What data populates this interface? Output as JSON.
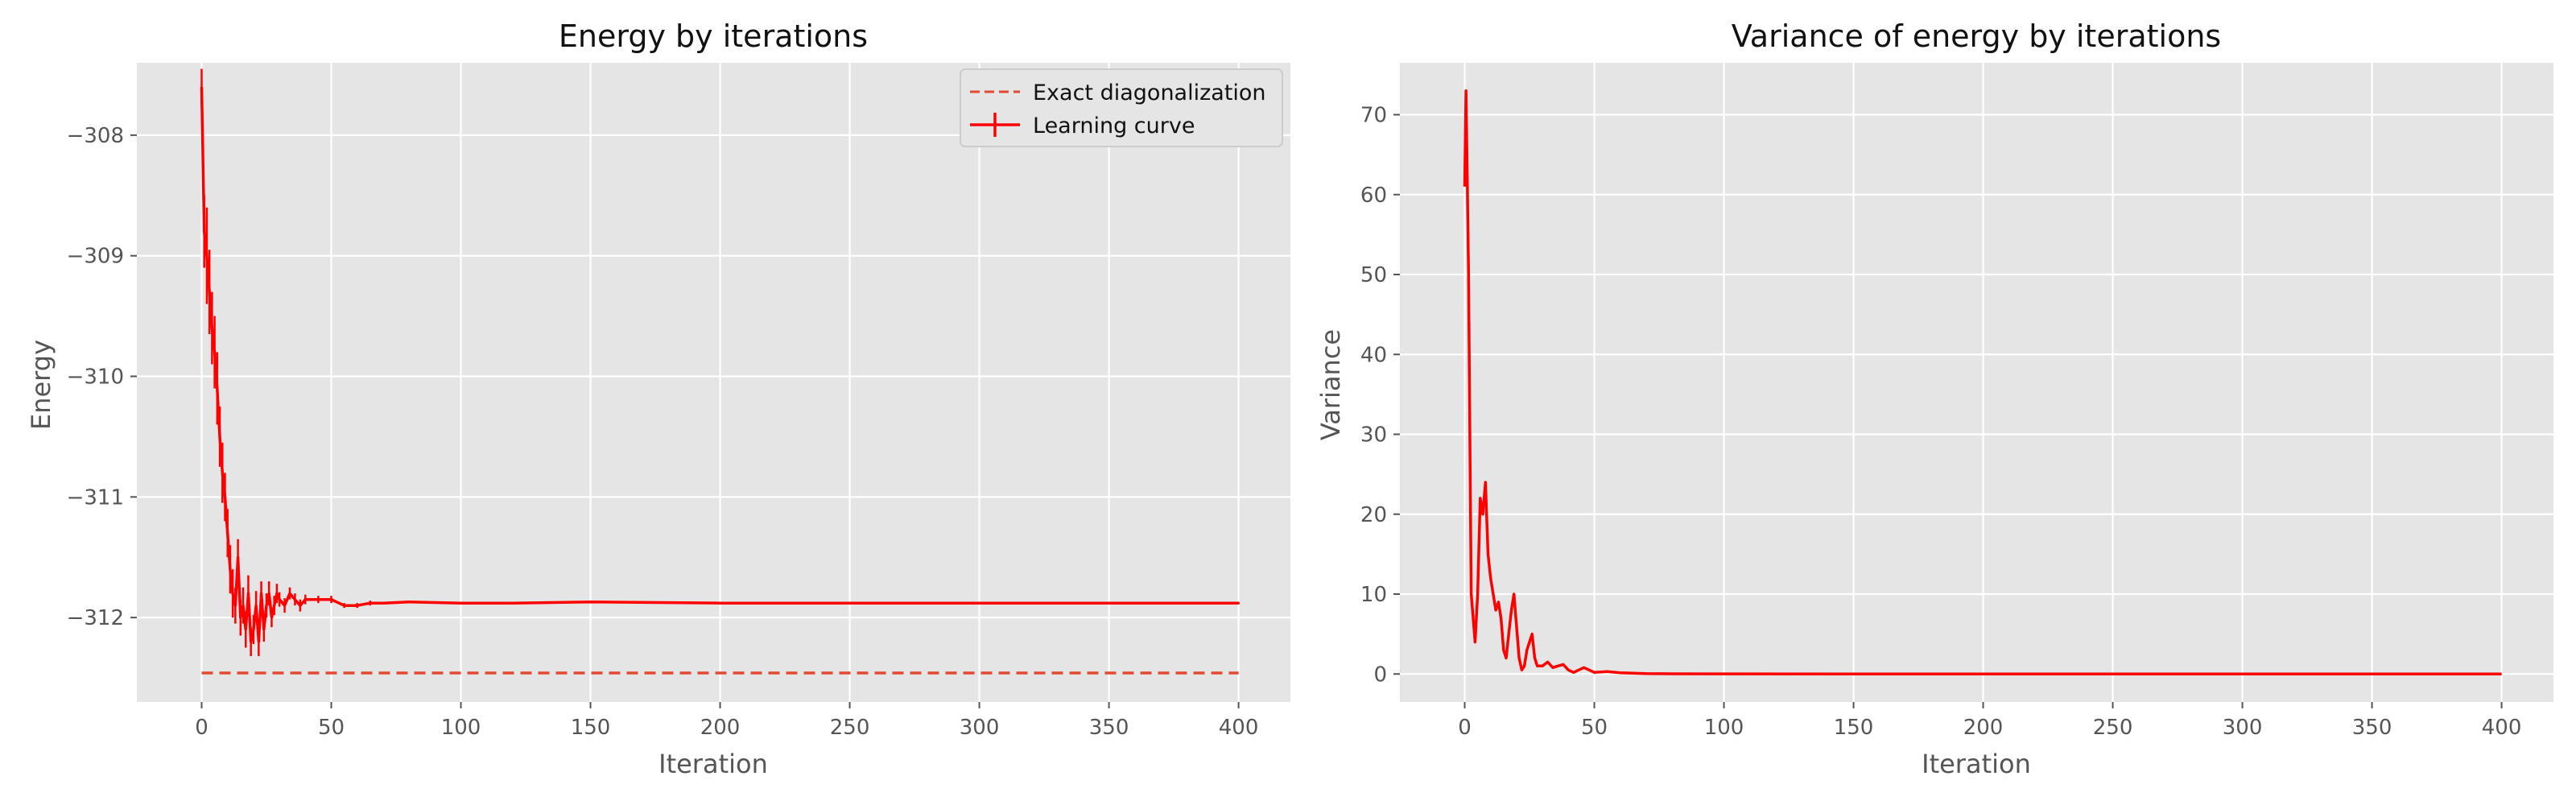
{
  "colors": {
    "background": "#E5E5E5",
    "grid": "#FFFFFF",
    "curve": "#FF0000",
    "reference": "#E24A33",
    "text": "#555555"
  },
  "chart_data": [
    {
      "type": "line",
      "title": "Energy by iterations",
      "xlabel": "Iteration",
      "ylabel": "Energy",
      "xlim": [
        -25,
        420
      ],
      "ylim": [
        -312.7,
        -307.4
      ],
      "xticks": [
        0,
        50,
        100,
        150,
        200,
        250,
        300,
        350,
        400
      ],
      "yticks": [
        -312,
        -311,
        -310,
        -309,
        -308
      ],
      "grid": true,
      "legend_position": "top-right",
      "series": [
        {
          "name": "Exact diagonalization",
          "style": "dashed",
          "x": [
            0,
            400
          ],
          "y": [
            -312.46,
            -312.46
          ]
        },
        {
          "name": "Learning curve",
          "style": "solid-errorbars",
          "x": [
            0,
            1,
            2,
            3,
            4,
            5,
            6,
            7,
            8,
            9,
            10,
            11,
            12,
            13,
            14,
            15,
            16,
            17,
            18,
            19,
            20,
            21,
            22,
            23,
            24,
            25,
            26,
            27,
            28,
            29,
            30,
            32,
            34,
            36,
            38,
            40,
            45,
            50,
            55,
            60,
            65,
            70,
            80,
            100,
            120,
            150,
            200,
            250,
            300,
            350,
            400
          ],
          "y": [
            -307.6,
            -308.8,
            -309.0,
            -309.3,
            -309.6,
            -309.8,
            -310.1,
            -310.5,
            -310.8,
            -311.0,
            -311.3,
            -311.6,
            -311.8,
            -311.9,
            -311.5,
            -312.0,
            -311.9,
            -312.1,
            -311.8,
            -312.2,
            -312.1,
            -311.9,
            -312.2,
            -311.8,
            -312.1,
            -311.9,
            -311.8,
            -312.0,
            -311.9,
            -311.8,
            -311.85,
            -311.9,
            -311.8,
            -311.85,
            -311.9,
            -311.85,
            -311.85,
            -311.85,
            -311.9,
            -311.9,
            -311.88,
            -311.88,
            -311.87,
            -311.88,
            -311.88,
            -311.87,
            -311.88,
            -311.88,
            -311.88,
            -311.88,
            -311.88
          ],
          "yerr": [
            0.15,
            0.3,
            0.4,
            0.35,
            0.3,
            0.3,
            0.3,
            0.25,
            0.25,
            0.2,
            0.2,
            0.2,
            0.2,
            0.15,
            0.15,
            0.15,
            0.15,
            0.15,
            0.15,
            0.12,
            0.12,
            0.12,
            0.12,
            0.1,
            0.1,
            0.1,
            0.1,
            0.08,
            0.08,
            0.08,
            0.06,
            0.06,
            0.05,
            0.05,
            0.05,
            0.04,
            0.03,
            0.03,
            0.02,
            0.02,
            0.02,
            0.01,
            0.01,
            0.01,
            0.01,
            0.01,
            0.01,
            0.01,
            0.01,
            0.01,
            0.01
          ]
        }
      ]
    },
    {
      "type": "line",
      "title": "Variance of energy by iterations",
      "xlabel": "Iteration",
      "ylabel": "Variance",
      "xlim": [
        -25,
        420
      ],
      "ylim": [
        -3.5,
        76.5
      ],
      "xticks": [
        0,
        50,
        100,
        150,
        200,
        250,
        300,
        350,
        400
      ],
      "yticks": [
        0,
        10,
        20,
        30,
        40,
        50,
        60,
        70
      ],
      "grid": true,
      "series": [
        {
          "style": "solid",
          "x": [
            0,
            0.5,
            1,
            1.5,
            2,
            2.5,
            3,
            4,
            5,
            6,
            7,
            8,
            9,
            10,
            11,
            12,
            13,
            14,
            15,
            16,
            17,
            18,
            19,
            20,
            21,
            22,
            23,
            24,
            25,
            26,
            27,
            28,
            30,
            32,
            34,
            36,
            38,
            40,
            42,
            44,
            46,
            48,
            50,
            55,
            60,
            65,
            70,
            80,
            100,
            150,
            200,
            250,
            300,
            350,
            400
          ],
          "y": [
            61,
            73,
            62,
            50,
            30,
            10,
            8,
            4,
            10,
            22,
            20,
            24,
            15,
            12,
            10,
            8,
            9,
            7,
            3,
            2,
            5,
            8,
            10,
            6,
            2,
            0.5,
            1,
            3,
            4,
            5,
            2,
            1,
            1,
            1.5,
            0.8,
            1,
            1.2,
            0.5,
            0.2,
            0.5,
            0.8,
            0.5,
            0.2,
            0.3,
            0.15,
            0.1,
            0.05,
            0.03,
            0.02,
            0.01,
            0.01,
            0.01,
            0.01,
            0.01,
            0.01
          ]
        }
      ]
    }
  ]
}
